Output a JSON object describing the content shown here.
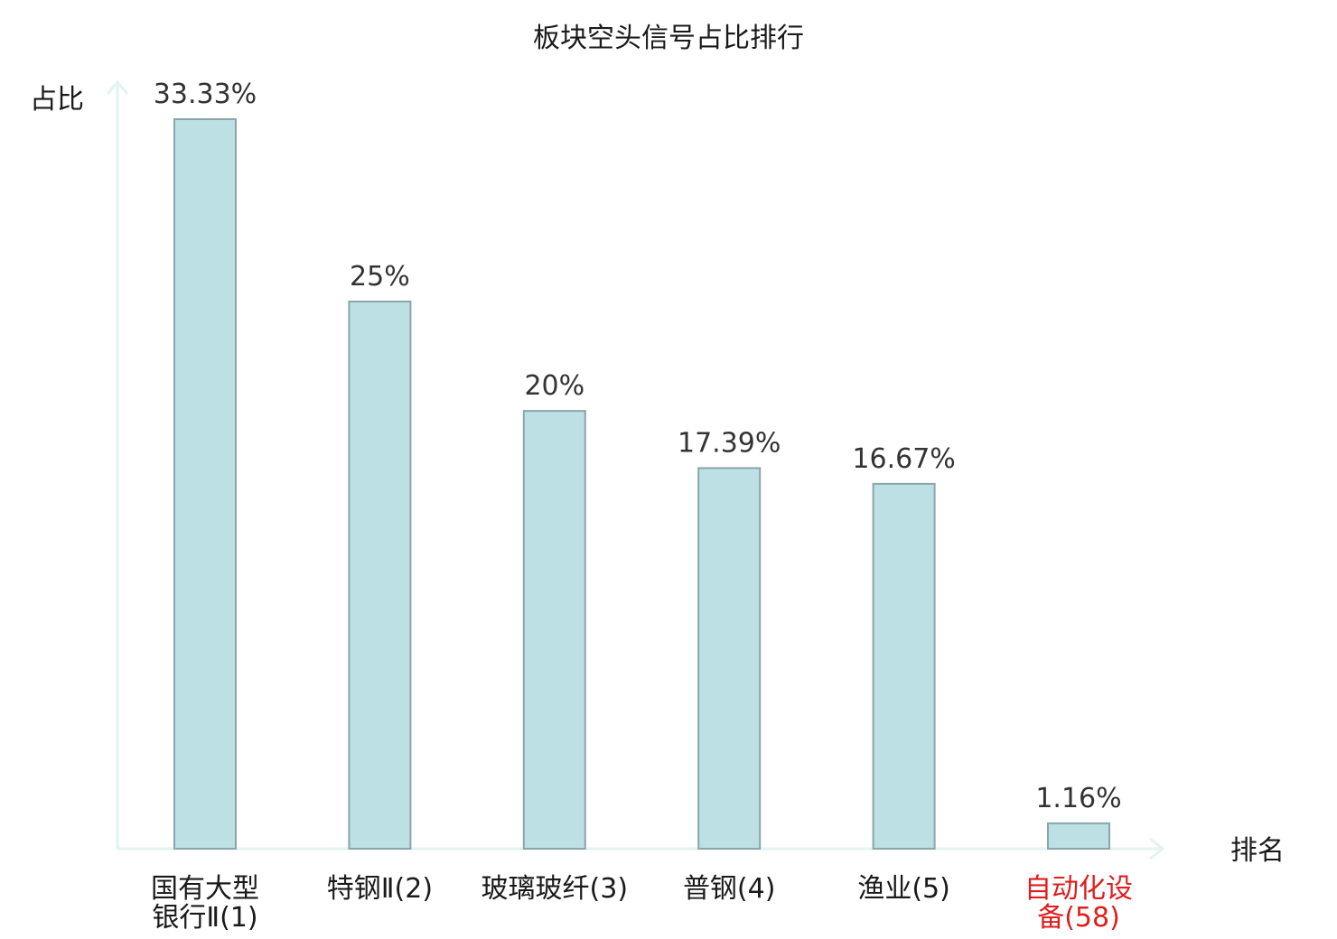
{
  "chart_data": {
    "type": "bar",
    "title": "板块空头信号占比排行",
    "ylabel": "占比",
    "xlabel": "排名",
    "ylim": [
      0,
      35
    ],
    "categories": [
      {
        "lines": [
          "国有大型",
          "银行Ⅱ(1)"
        ],
        "highlight": false
      },
      {
        "lines": [
          "特钢Ⅱ(2)"
        ],
        "highlight": false
      },
      {
        "lines": [
          "玻璃玻纤(3)"
        ],
        "highlight": false
      },
      {
        "lines": [
          "普钢(4)"
        ],
        "highlight": false
      },
      {
        "lines": [
          "渔业(5)"
        ],
        "highlight": false
      },
      {
        "lines": [
          "自动化设",
          "备(58)"
        ],
        "highlight": true
      }
    ],
    "values": [
      33.33,
      25,
      20,
      17.39,
      16.67,
      1.16
    ],
    "value_labels": [
      "33.33%",
      "25%",
      "20%",
      "17.39%",
      "16.67%",
      "1.16%"
    ],
    "grid": false,
    "legend": "none"
  },
  "colors": {
    "bar_fill": "#bce0e3",
    "bar_stroke": "#8aa6a8",
    "axis": "#e2f3f1",
    "highlight_text": "#e01e1e",
    "text": "#1a1a1a"
  }
}
